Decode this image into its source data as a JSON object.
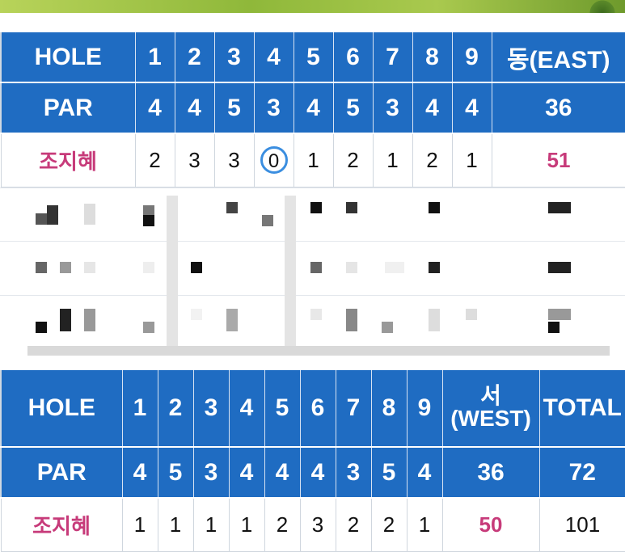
{
  "front": {
    "hole_label": "HOLE",
    "holes": [
      "1",
      "2",
      "3",
      "4",
      "5",
      "6",
      "7",
      "8",
      "9"
    ],
    "subtotal_label": "동(EAST)",
    "par_label": "PAR",
    "pars": [
      "4",
      "4",
      "5",
      "3",
      "4",
      "5",
      "3",
      "4",
      "4"
    ],
    "par_total": "36",
    "player": {
      "name": "조지혜",
      "scores": [
        "2",
        "3",
        "3",
        "0",
        "1",
        "2",
        "1",
        "2",
        "1"
      ],
      "total": "51"
    }
  },
  "back": {
    "hole_label": "HOLE",
    "holes": [
      "1",
      "2",
      "3",
      "4",
      "5",
      "6",
      "7",
      "8",
      "9"
    ],
    "subtotal_label": "서\n(WEST)",
    "total_label": "TOTAL",
    "par_label": "PAR",
    "pars": [
      "4",
      "5",
      "3",
      "4",
      "4",
      "4",
      "3",
      "5",
      "4"
    ],
    "par_subtotal": "36",
    "par_total": "72",
    "player": {
      "name": "조지혜",
      "scores": [
        "1",
        "1",
        "1",
        "1",
        "2",
        "3",
        "2",
        "2",
        "1"
      ],
      "subtotal": "50",
      "total": "101"
    }
  },
  "colors": {
    "header_blue": "#1f6cc2",
    "player_pink": "#c73b7a",
    "circle_blue": "#3b8ee0"
  }
}
